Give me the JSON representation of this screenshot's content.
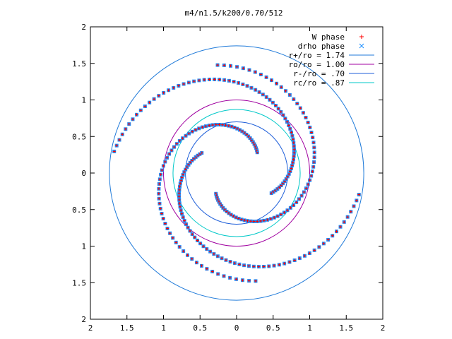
{
  "chart_data": {
    "type": "scatter",
    "title": "m4/n1.5/k200/0.70/512",
    "xlim": [
      -2,
      2
    ],
    "ylim": [
      -2,
      2
    ],
    "xticks": [
      "2",
      "1.5",
      "1",
      "0.5",
      "0",
      "0.5",
      "1",
      "1.5",
      "2"
    ],
    "yticks": [
      "2",
      "1.5",
      "1",
      "0.5",
      "0",
      "0.5",
      "1",
      "1.5",
      "2"
    ],
    "xtick_values": [
      -2,
      -1.5,
      -1,
      -0.5,
      0,
      0.5,
      1,
      1.5,
      2
    ],
    "ytick_values": [
      2,
      1.5,
      1,
      0.5,
      0,
      -0.5,
      -1,
      -1.5,
      -2
    ],
    "grid": false,
    "legend_position": "top-right",
    "colors": {
      "w_phase": "#ff0000",
      "drho_phase": "#1e90ff",
      "r_plus": "#1f7ad9",
      "r_o": "#a000a0",
      "r_minus": "#1f5fd9",
      "r_c": "#00c8c8"
    },
    "series": [
      {
        "name": "W phase",
        "kind": "points",
        "marker": "+",
        "color": "#ff0000"
      },
      {
        "name": "drho phase",
        "kind": "points",
        "marker": "x",
        "color": "#1e90ff"
      },
      {
        "name": "r+/ro = 1.74",
        "kind": "circle",
        "radius": 1.74,
        "color": "#1f7ad9"
      },
      {
        "name": "ro/ro = 1.00",
        "kind": "circle",
        "radius": 1.0,
        "color": "#a000a0"
      },
      {
        "name": "r-/ro = .70",
        "kind": "circle",
        "radius": 0.7,
        "color": "#1f5fd9"
      },
      {
        "name": "rc/ro = .87",
        "kind": "circle",
        "radius": 0.87,
        "color": "#00c8c8"
      }
    ],
    "arms": [
      {
        "r_start": 0.4,
        "r_end": 1.5,
        "theta_start_deg": 225,
        "turns_deg": 235
      },
      {
        "r_start": 0.4,
        "r_end": 1.5,
        "theta_start_deg": 45,
        "turns_deg": 235
      },
      {
        "r_start": 0.55,
        "r_end": 1.7,
        "theta_start_deg": 150,
        "turns_deg": 200
      },
      {
        "r_start": 0.55,
        "r_end": 1.7,
        "theta_start_deg": 330,
        "turns_deg": 200
      }
    ]
  }
}
